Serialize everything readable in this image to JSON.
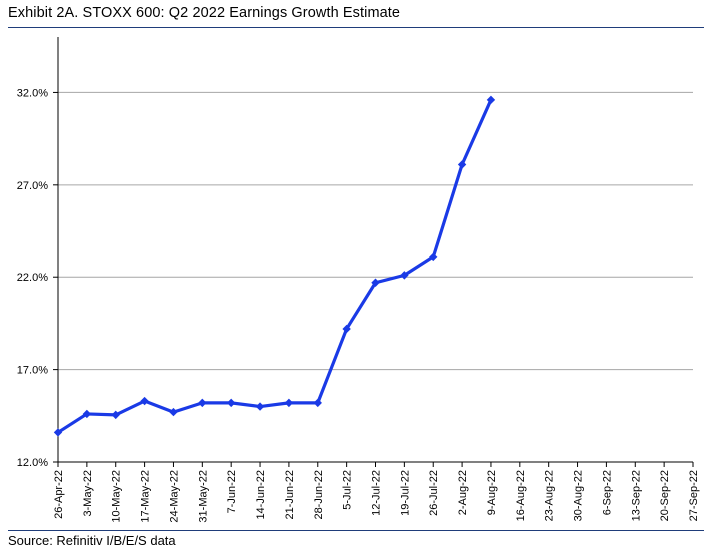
{
  "header": {
    "title": "Exhibit 2A.  STOXX 600: Q2 2022 Earnings Growth Estimate"
  },
  "footer": {
    "source": "Source: Refinitiv I/B/E/S data"
  },
  "colors": {
    "series": "#1a3ae6",
    "grid": "#a6a6a6",
    "rule": "#1f3d7a"
  },
  "chart_data": {
    "type": "line",
    "title": "Exhibit 2A.  STOXX 600: Q2 2022 Earnings Growth Estimate",
    "xlabel": "",
    "ylabel": "",
    "ylim": [
      12.0,
      35.0
    ],
    "grid": true,
    "legend": "none",
    "y_ticks": [
      "12.0%",
      "17.0%",
      "22.0%",
      "27.0%",
      "32.0%"
    ],
    "y_tick_values": [
      12.0,
      17.0,
      22.0,
      27.0,
      32.0
    ],
    "categories": [
      "26-Apr-22",
      "3-May-22",
      "10-May-22",
      "17-May-22",
      "24-May-22",
      "31-May-22",
      "7-Jun-22",
      "14-Jun-22",
      "21-Jun-22",
      "28-Jun-22",
      "5-Jul-22",
      "12-Jul-22",
      "19-Jul-22",
      "26-Jul-22",
      "2-Aug-22",
      "9-Aug-22",
      "16-Aug-22",
      "23-Aug-22",
      "30-Aug-22",
      "6-Sep-22",
      "13-Sep-22",
      "20-Sep-22",
      "27-Sep-22"
    ],
    "series": [
      {
        "values": [
          13.6,
          14.6,
          14.55,
          15.3,
          14.7,
          15.2,
          15.2,
          15.0,
          15.2,
          15.2,
          19.2,
          21.7,
          22.1,
          23.1,
          28.1,
          31.6,
          null,
          null,
          null,
          null,
          null,
          null,
          null
        ]
      }
    ]
  }
}
